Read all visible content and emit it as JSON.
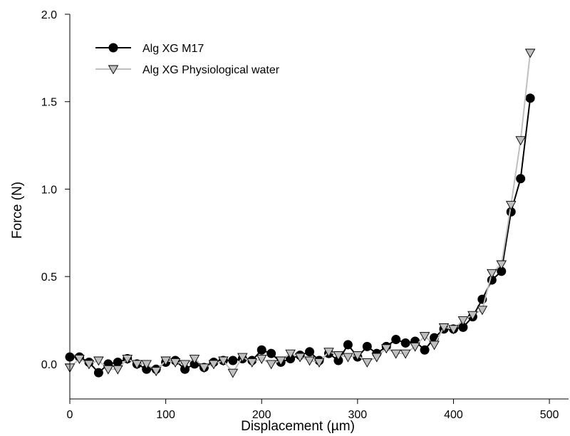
{
  "chart_data": {
    "type": "line",
    "title": "",
    "xlabel": "Displacement (µm)",
    "ylabel": "Force (N)",
    "xlim": [
      0,
      520
    ],
    "ylim": [
      -0.2,
      2.0
    ],
    "xticks": [
      0,
      100,
      200,
      300,
      400,
      500
    ],
    "xtick_labels": [
      "0",
      "100",
      "200",
      "300",
      "400",
      "500"
    ],
    "yticks": [
      0.0,
      0.5,
      1.0,
      1.5,
      2.0
    ],
    "ytick_labels": [
      "0.0",
      "0.5",
      "1.0",
      "1.5",
      "2.0"
    ],
    "grid": false,
    "legend_position": "top-left",
    "series": [
      {
        "name": "Alg XG M17",
        "marker": "circle",
        "color": "#000000",
        "marker_fill": "#000000",
        "x": [
          0,
          10,
          20,
          30,
          40,
          50,
          60,
          70,
          80,
          90,
          100,
          110,
          120,
          130,
          140,
          150,
          160,
          170,
          180,
          190,
          200,
          210,
          220,
          230,
          240,
          250,
          260,
          270,
          280,
          290,
          300,
          310,
          320,
          330,
          340,
          350,
          360,
          370,
          380,
          390,
          400,
          410,
          420,
          430,
          440,
          450,
          460,
          470,
          480
        ],
        "y": [
          0.04,
          0.04,
          0.01,
          -0.05,
          0.0,
          0.01,
          0.03,
          0.0,
          -0.03,
          -0.03,
          0.01,
          0.02,
          -0.03,
          0.0,
          -0.02,
          0.01,
          0.02,
          0.02,
          0.03,
          0.02,
          0.08,
          0.06,
          0.01,
          0.03,
          0.05,
          0.07,
          0.02,
          0.06,
          0.02,
          0.11,
          0.04,
          0.1,
          0.06,
          0.1,
          0.14,
          0.12,
          0.13,
          0.08,
          0.15,
          0.2,
          0.2,
          0.21,
          0.27,
          0.37,
          0.48,
          0.53,
          0.87,
          1.06,
          1.52
        ]
      },
      {
        "name": "Alg XG Physiological water",
        "marker": "triangle-down",
        "color": "#bfbfbf",
        "marker_fill": "#bfbfbf",
        "x": [
          0,
          10,
          20,
          30,
          40,
          50,
          60,
          70,
          80,
          90,
          100,
          110,
          120,
          130,
          140,
          150,
          160,
          170,
          180,
          190,
          200,
          210,
          220,
          230,
          240,
          250,
          260,
          270,
          280,
          290,
          300,
          310,
          320,
          330,
          340,
          350,
          360,
          370,
          380,
          390,
          400,
          410,
          420,
          430,
          440,
          450,
          460,
          470,
          480
        ],
        "y": [
          -0.02,
          0.03,
          0.0,
          0.02,
          -0.03,
          -0.03,
          0.03,
          0.0,
          0.0,
          -0.04,
          0.02,
          0.01,
          0.0,
          0.03,
          -0.02,
          0.0,
          0.02,
          -0.05,
          0.04,
          0.01,
          0.03,
          0.0,
          0.02,
          0.06,
          0.04,
          0.02,
          0.01,
          0.07,
          0.05,
          0.04,
          0.05,
          0.01,
          0.04,
          0.09,
          0.06,
          0.06,
          0.1,
          0.16,
          0.11,
          0.21,
          0.2,
          0.25,
          0.28,
          0.31,
          0.52,
          0.57,
          0.91,
          1.28,
          1.78
        ]
      }
    ]
  }
}
